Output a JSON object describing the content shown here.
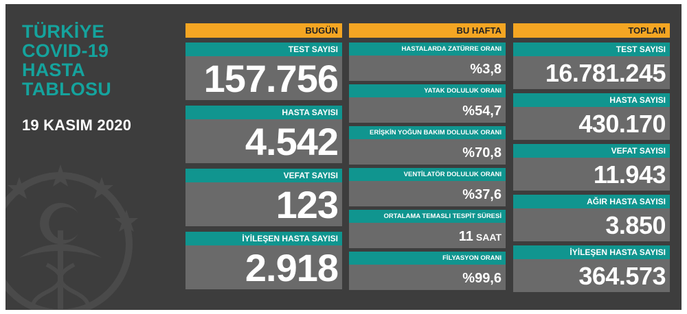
{
  "title_lines": [
    "TÜRKİYE",
    "COVID-19",
    "HASTA",
    "TABLOSU"
  ],
  "date": "19 KASIM 2020",
  "today": {
    "header": "BUGÜN",
    "items": [
      {
        "label": "TEST SAYISI",
        "value": "157.756"
      },
      {
        "label": "HASTA SAYISI",
        "value": "4.542"
      },
      {
        "label": "VEFAT SAYISI",
        "value": "123"
      },
      {
        "label": "İYİLEŞEN HASTA SAYISI",
        "value": "2.918"
      }
    ]
  },
  "week": {
    "header": "BU HAFTA",
    "items": [
      {
        "label": "HASTALARDA ZATÜRRE ORANI",
        "value": "%3,8"
      },
      {
        "label": "YATAK DOLULUK ORANI",
        "value": "%54,7"
      },
      {
        "label": "ERİŞKİN YOĞUN BAKIM DOLULUK ORANI",
        "value": "%70,8"
      },
      {
        "label": "VENTİLATÖR DOLULUK ORANI",
        "value": "%37,6"
      },
      {
        "label": "ORTALAMA TEMASLI TESPİT SÜRESİ",
        "value": "11",
        "unit": "SAAT"
      },
      {
        "label": "FİLYASYON ORANI",
        "value": "%99,6"
      }
    ]
  },
  "total": {
    "header": "TOPLAM",
    "items": [
      {
        "label": "TEST SAYISI",
        "value": "16.781.245"
      },
      {
        "label": "HASTA SAYISI",
        "value": "430.170"
      },
      {
        "label": "VEFAT SAYISI",
        "value": "11.943"
      },
      {
        "label": "AĞIR HASTA SAYISI",
        "value": "3.850"
      },
      {
        "label": "İYİLEŞEN HASTA SAYISI",
        "value": "364.573"
      }
    ]
  },
  "colors": {
    "background": "#3d3d3d",
    "accent_title": "#15a39d",
    "header": "#f5a623",
    "label_bar": "#10958f",
    "value_box": "#6a6a6a"
  },
  "icons": {
    "emblem": "health-ministry-emblem-icon"
  }
}
